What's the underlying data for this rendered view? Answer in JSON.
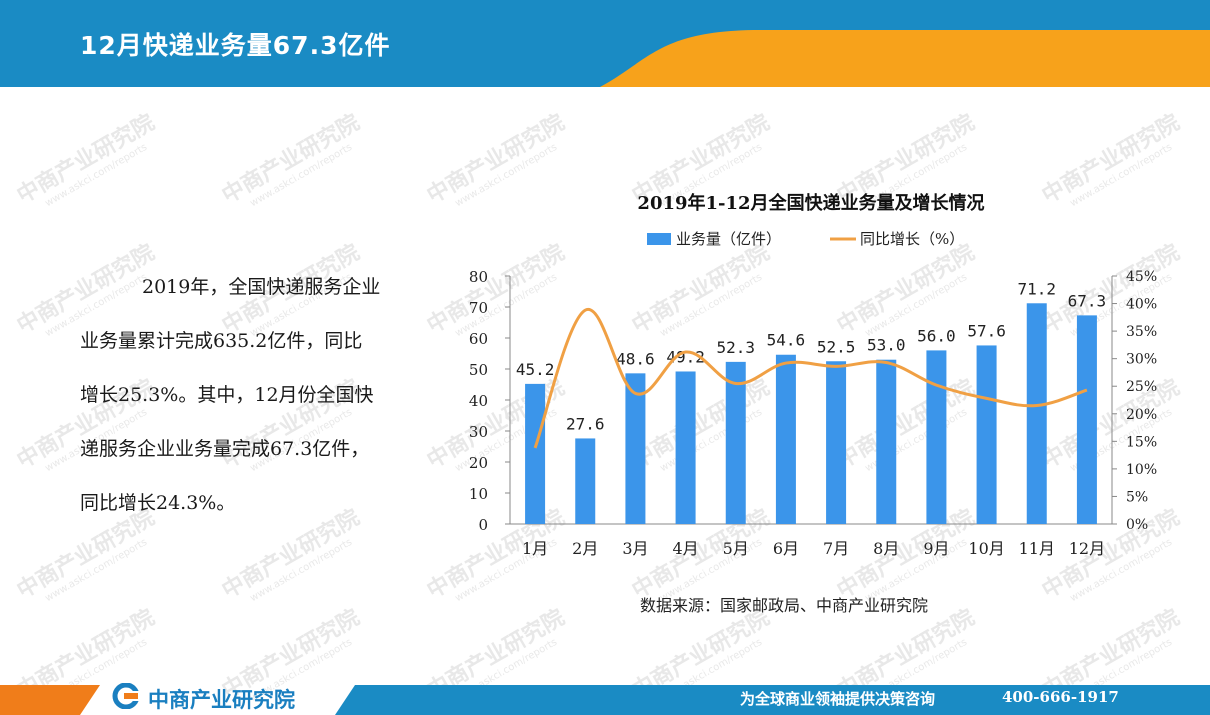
{
  "header": {
    "title": "12月快递业务量67.3亿件",
    "colors": {
      "blue": "#1a8bc4",
      "orange": "#f7a21b"
    }
  },
  "watermark": {
    "main": "中商产业研究院",
    "sub": "www.askci.com/reports"
  },
  "summary": {
    "lines": [
      "2019年，全国快递服务企业",
      "业务量累计完成635.2亿件，同比",
      "增长25.3%。其中，12月份全国快",
      "递服务企业业务量完成67.3亿件，",
      "同比增长24.3%。"
    ]
  },
  "chart_data": {
    "type": "bar",
    "title": "2019年1-12月全国快递业务量及增长情况",
    "categories": [
      "1月",
      "2月",
      "3月",
      "4月",
      "5月",
      "6月",
      "7月",
      "8月",
      "9月",
      "10月",
      "11月",
      "12月"
    ],
    "series": [
      {
        "name": "业务量（亿件）",
        "type": "bar",
        "axis": "left",
        "color": "#3b95ea",
        "values": [
          45.2,
          27.6,
          48.6,
          49.2,
          52.3,
          54.6,
          52.5,
          53.0,
          56.0,
          57.6,
          71.2,
          67.3
        ]
      },
      {
        "name": "同比增长（%）",
        "type": "line",
        "axis": "right",
        "color": "#f0a044",
        "values": [
          13.8,
          38.8,
          23.7,
          31.2,
          25.5,
          29.2,
          28.6,
          29.3,
          25.2,
          22.8,
          21.5,
          24.3
        ]
      }
    ],
    "data_labels": [
      "45.2",
      "27.6",
      "48.6",
      "49.2",
      "52.3",
      "54.6",
      "52.5",
      "53.0",
      "56.0",
      "57.6",
      "71.2",
      "67.3"
    ],
    "ylim": [
      0,
      80
    ],
    "y_ticks": [
      "0",
      "10",
      "20",
      "30",
      "40",
      "50",
      "60",
      "70",
      "80"
    ],
    "y2lim": [
      0,
      45
    ],
    "y2_ticks": [
      "0%",
      "5%",
      "10%",
      "15%",
      "20%",
      "25%",
      "30%",
      "35%",
      "40%",
      "45%"
    ],
    "legend_position": "top",
    "grid": false
  },
  "source": "数据来源：国家邮政局、中商产业研究院",
  "footer": {
    "logo": "中商产业研究院",
    "tagline": "为全球商业领袖提供决策咨询",
    "phone": "400-666-1917",
    "colors": {
      "blue": "#1a8bc4",
      "orange": "#f07d1a"
    }
  }
}
